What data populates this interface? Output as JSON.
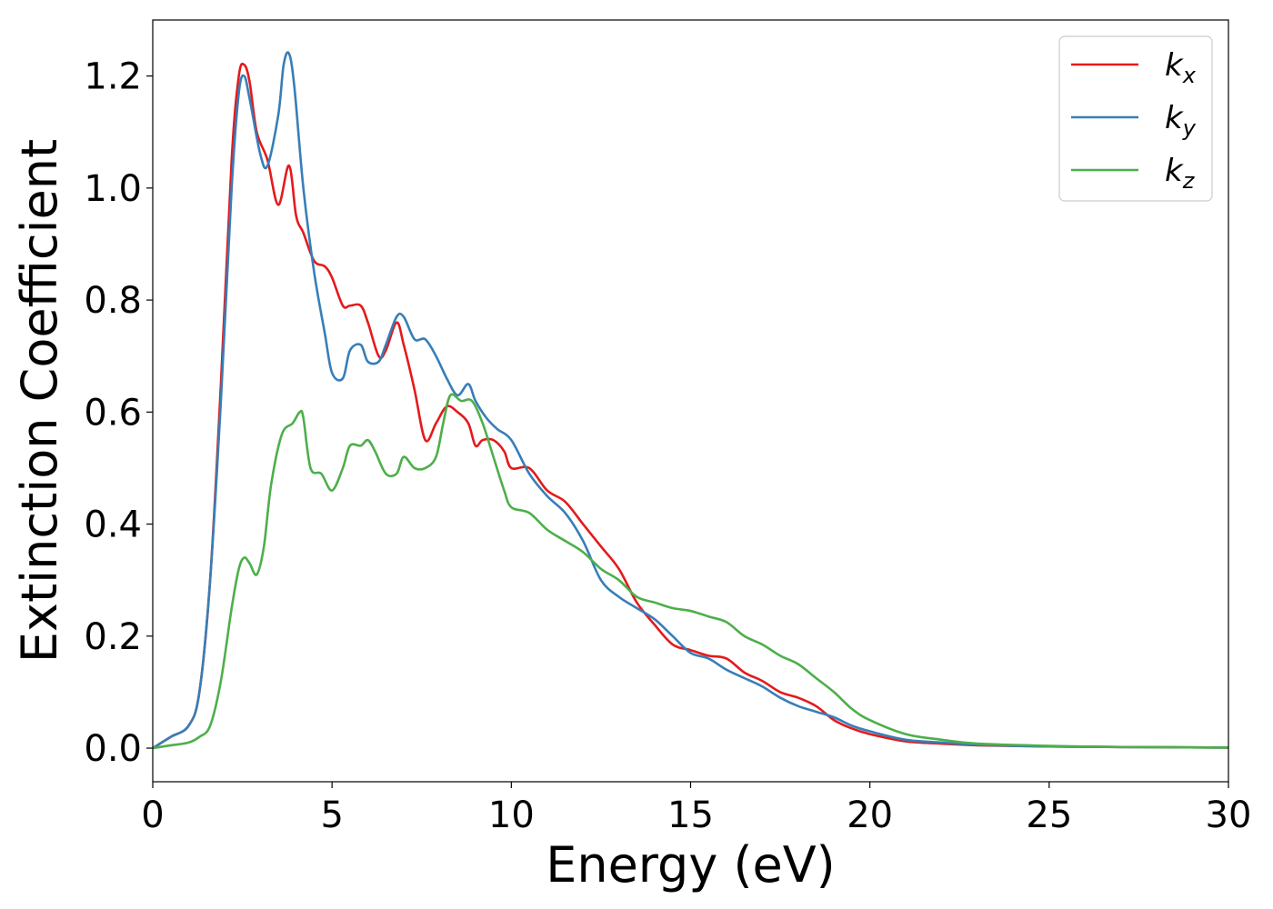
{
  "chart_data": {
    "type": "line",
    "xlabel": "Energy (eV)",
    "ylabel": "Extinction Coefficient",
    "xlim": [
      0,
      30
    ],
    "ylim": [
      -0.06,
      1.3
    ],
    "xticks": [
      0,
      5,
      10,
      15,
      20,
      25,
      30
    ],
    "yticks": [
      0.0,
      0.2,
      0.4,
      0.6,
      0.8,
      1.0,
      1.2
    ],
    "xtick_labels": [
      "0",
      "5",
      "10",
      "15",
      "20",
      "25",
      "30"
    ],
    "ytick_labels": [
      "0.0",
      "0.2",
      "0.4",
      "0.6",
      "0.8",
      "1.0",
      "1.2"
    ],
    "grid": false,
    "legend_position": "top-right",
    "series": [
      {
        "name": "kx",
        "label_base": "k",
        "label_sub": "x",
        "color": "#e41a1c",
        "x": [
          0,
          0.5,
          1,
          1.3,
          1.6,
          1.9,
          2.2,
          2.4,
          2.55,
          2.7,
          2.9,
          3.2,
          3.5,
          3.8,
          4.0,
          4.2,
          4.5,
          4.8,
          5.0,
          5.3,
          5.5,
          5.8,
          6.0,
          6.3,
          6.5,
          6.8,
          7.0,
          7.3,
          7.6,
          7.9,
          8.2,
          8.5,
          8.8,
          9.0,
          9.2,
          9.5,
          9.8,
          10.0,
          10.5,
          11.0,
          11.5,
          12.0,
          12.5,
          13.0,
          13.5,
          14.0,
          14.5,
          15.0,
          15.5,
          16.0,
          16.5,
          17.0,
          17.5,
          18.0,
          18.5,
          19.0,
          19.5,
          20.0,
          21.0,
          22.0,
          23.0,
          25.0,
          27.0,
          30.0
        ],
        "y": [
          0.0,
          0.02,
          0.04,
          0.1,
          0.3,
          0.65,
          1.05,
          1.2,
          1.22,
          1.19,
          1.1,
          1.05,
          0.97,
          1.04,
          0.95,
          0.92,
          0.87,
          0.86,
          0.84,
          0.79,
          0.79,
          0.79,
          0.76,
          0.7,
          0.71,
          0.76,
          0.72,
          0.64,
          0.55,
          0.58,
          0.61,
          0.6,
          0.58,
          0.54,
          0.55,
          0.55,
          0.53,
          0.5,
          0.5,
          0.46,
          0.44,
          0.4,
          0.36,
          0.32,
          0.26,
          0.22,
          0.185,
          0.175,
          0.165,
          0.16,
          0.135,
          0.12,
          0.1,
          0.09,
          0.075,
          0.05,
          0.035,
          0.025,
          0.012,
          0.008,
          0.005,
          0.003,
          0.002,
          0.001
        ]
      },
      {
        "name": "ky",
        "label_base": "k",
        "label_sub": "y",
        "color": "#377eb8",
        "x": [
          0,
          0.5,
          1,
          1.3,
          1.6,
          1.9,
          2.2,
          2.4,
          2.55,
          2.7,
          3.0,
          3.2,
          3.5,
          3.65,
          3.8,
          3.95,
          4.2,
          4.5,
          4.8,
          5.0,
          5.3,
          5.5,
          5.8,
          6.0,
          6.3,
          6.5,
          6.8,
          7.0,
          7.3,
          7.6,
          7.9,
          8.2,
          8.5,
          8.8,
          9.0,
          9.3,
          9.6,
          10.0,
          10.5,
          11.0,
          11.5,
          12.0,
          12.5,
          13.0,
          13.5,
          14.0,
          14.5,
          15.0,
          15.5,
          16.0,
          16.5,
          17.0,
          17.5,
          18.0,
          18.5,
          19.0,
          19.5,
          20.0,
          21.0,
          22.0,
          23.0,
          25.0,
          27.0,
          30.0
        ],
        "y": [
          0.0,
          0.02,
          0.04,
          0.1,
          0.3,
          0.62,
          1.0,
          1.17,
          1.2,
          1.16,
          1.06,
          1.04,
          1.13,
          1.22,
          1.24,
          1.18,
          1.0,
          0.85,
          0.74,
          0.67,
          0.66,
          0.71,
          0.72,
          0.69,
          0.69,
          0.72,
          0.77,
          0.77,
          0.73,
          0.73,
          0.7,
          0.66,
          0.63,
          0.65,
          0.62,
          0.59,
          0.57,
          0.55,
          0.49,
          0.45,
          0.42,
          0.37,
          0.3,
          0.27,
          0.25,
          0.23,
          0.2,
          0.17,
          0.16,
          0.14,
          0.125,
          0.11,
          0.09,
          0.075,
          0.065,
          0.055,
          0.04,
          0.03,
          0.015,
          0.01,
          0.006,
          0.003,
          0.002,
          0.001
        ]
      },
      {
        "name": "kz",
        "label_base": "k",
        "label_sub": "z",
        "color": "#4daf4a",
        "x": [
          0,
          0.5,
          1,
          1.3,
          1.6,
          1.9,
          2.2,
          2.4,
          2.55,
          2.7,
          2.9,
          3.1,
          3.3,
          3.6,
          3.9,
          4.1,
          4.2,
          4.4,
          4.7,
          5.0,
          5.3,
          5.5,
          5.8,
          6.0,
          6.2,
          6.5,
          6.8,
          7.0,
          7.3,
          7.6,
          7.9,
          8.1,
          8.3,
          8.6,
          8.9,
          9.2,
          9.5,
          9.8,
          10.0,
          10.5,
          11.0,
          11.5,
          12.0,
          12.5,
          13.0,
          13.5,
          14.0,
          14.5,
          15.0,
          15.5,
          16.0,
          16.5,
          17.0,
          17.5,
          18.0,
          18.5,
          19.0,
          19.5,
          20.0,
          21.0,
          22.0,
          23.0,
          25.0,
          27.0,
          30.0
        ],
        "y": [
          0.0,
          0.005,
          0.01,
          0.02,
          0.04,
          0.12,
          0.25,
          0.32,
          0.34,
          0.33,
          0.31,
          0.36,
          0.47,
          0.56,
          0.58,
          0.6,
          0.59,
          0.5,
          0.49,
          0.46,
          0.5,
          0.54,
          0.54,
          0.55,
          0.53,
          0.49,
          0.49,
          0.52,
          0.5,
          0.5,
          0.52,
          0.58,
          0.63,
          0.62,
          0.62,
          0.58,
          0.52,
          0.46,
          0.43,
          0.42,
          0.39,
          0.37,
          0.35,
          0.32,
          0.3,
          0.27,
          0.26,
          0.25,
          0.245,
          0.235,
          0.225,
          0.2,
          0.185,
          0.165,
          0.15,
          0.125,
          0.1,
          0.07,
          0.05,
          0.025,
          0.015,
          0.008,
          0.004,
          0.002,
          0.001
        ]
      }
    ]
  }
}
